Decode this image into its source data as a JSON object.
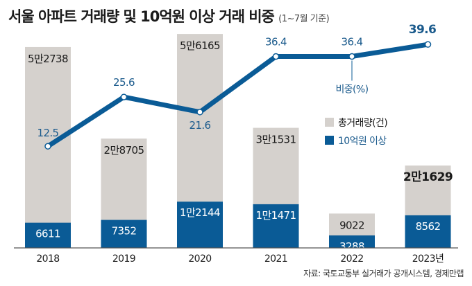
{
  "header": {
    "title": "서울 아파트 거래량 및 10억원 이상 거래 비중",
    "subtitle": "(1~7월 기준)"
  },
  "source": "자료: 국토교통부 실거래가 공개시스템, 경제만랩",
  "colors": {
    "total_bar": "#d5d1cd",
    "over_1b_bar": "#0a5b96",
    "line": "#0a5b96",
    "line_label": "#1a5a8c"
  },
  "chart_data": {
    "type": "bar",
    "categories": [
      "2018",
      "2019",
      "2020",
      "2021",
      "2022",
      "2023년"
    ],
    "series": [
      {
        "name": "총거래량(건)",
        "values": [
          52738,
          28705,
          56165,
          31531,
          9022,
          21629
        ],
        "labels": [
          "5만2738",
          "2만8705",
          "5만6165",
          "3만1531",
          "9022",
          "2만1629"
        ]
      },
      {
        "name": "10억원 이상",
        "values": [
          6611,
          7352,
          12144,
          11471,
          3288,
          8562
        ],
        "labels": [
          "6611",
          "7352",
          "1만2144",
          "1만1471",
          "3288",
          "8562"
        ]
      }
    ],
    "line": {
      "name": "비중(%)",
      "values": [
        12.5,
        25.6,
        21.6,
        36.4,
        36.4,
        39.6
      ],
      "labels": [
        "12.5",
        "25.6",
        "21.6",
        "36.4",
        "36.4",
        "39.6"
      ]
    },
    "legend_position": "middle-right",
    "grid": false
  }
}
